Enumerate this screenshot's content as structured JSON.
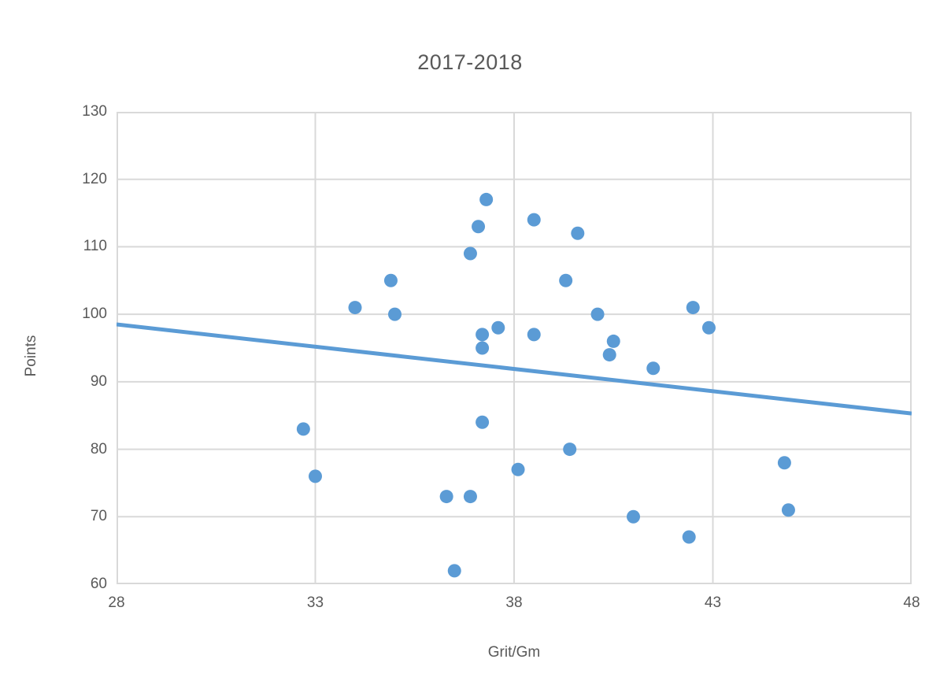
{
  "chart": {
    "title": "2017-2018",
    "x_axis_title": "Grit/Gm",
    "y_axis_title": "Points"
  },
  "chart_data": {
    "type": "scatter",
    "title": "2017-2018",
    "xlabel": "Grit/Gm",
    "ylabel": "Points",
    "xlim": [
      28,
      48
    ],
    "ylim": [
      60,
      130
    ],
    "xticks": [
      28,
      33,
      38,
      43,
      48
    ],
    "yticks": [
      60,
      70,
      80,
      90,
      100,
      110,
      120,
      130
    ],
    "grid": true,
    "legend": false,
    "marker_color": "#5B9BD5",
    "trendline_color": "#5B9BD5",
    "gridline_color": "#D9D9D9",
    "text_color": "#595959",
    "points": [
      {
        "x": 32.7,
        "y": 83
      },
      {
        "x": 33.0,
        "y": 76
      },
      {
        "x": 34.0,
        "y": 101
      },
      {
        "x": 34.9,
        "y": 105
      },
      {
        "x": 35.0,
        "y": 100
      },
      {
        "x": 36.3,
        "y": 73
      },
      {
        "x": 36.5,
        "y": 62
      },
      {
        "x": 36.9,
        "y": 73
      },
      {
        "x": 36.9,
        "y": 109
      },
      {
        "x": 37.1,
        "y": 113
      },
      {
        "x": 37.2,
        "y": 84
      },
      {
        "x": 37.2,
        "y": 95
      },
      {
        "x": 37.2,
        "y": 97
      },
      {
        "x": 37.3,
        "y": 117
      },
      {
        "x": 37.6,
        "y": 98
      },
      {
        "x": 38.1,
        "y": 77
      },
      {
        "x": 38.5,
        "y": 97
      },
      {
        "x": 38.5,
        "y": 114
      },
      {
        "x": 39.3,
        "y": 105
      },
      {
        "x": 39.4,
        "y": 80
      },
      {
        "x": 39.6,
        "y": 112
      },
      {
        "x": 40.1,
        "y": 100
      },
      {
        "x": 40.4,
        "y": 94
      },
      {
        "x": 40.5,
        "y": 96
      },
      {
        "x": 41.0,
        "y": 70
      },
      {
        "x": 41.5,
        "y": 92
      },
      {
        "x": 42.4,
        "y": 67
      },
      {
        "x": 42.5,
        "y": 101
      },
      {
        "x": 42.9,
        "y": 98
      },
      {
        "x": 44.8,
        "y": 78
      },
      {
        "x": 44.9,
        "y": 71
      }
    ],
    "trendline": {
      "x_start": 28,
      "y_start": 98.5,
      "x_end": 48,
      "y_end": 85.3
    }
  }
}
